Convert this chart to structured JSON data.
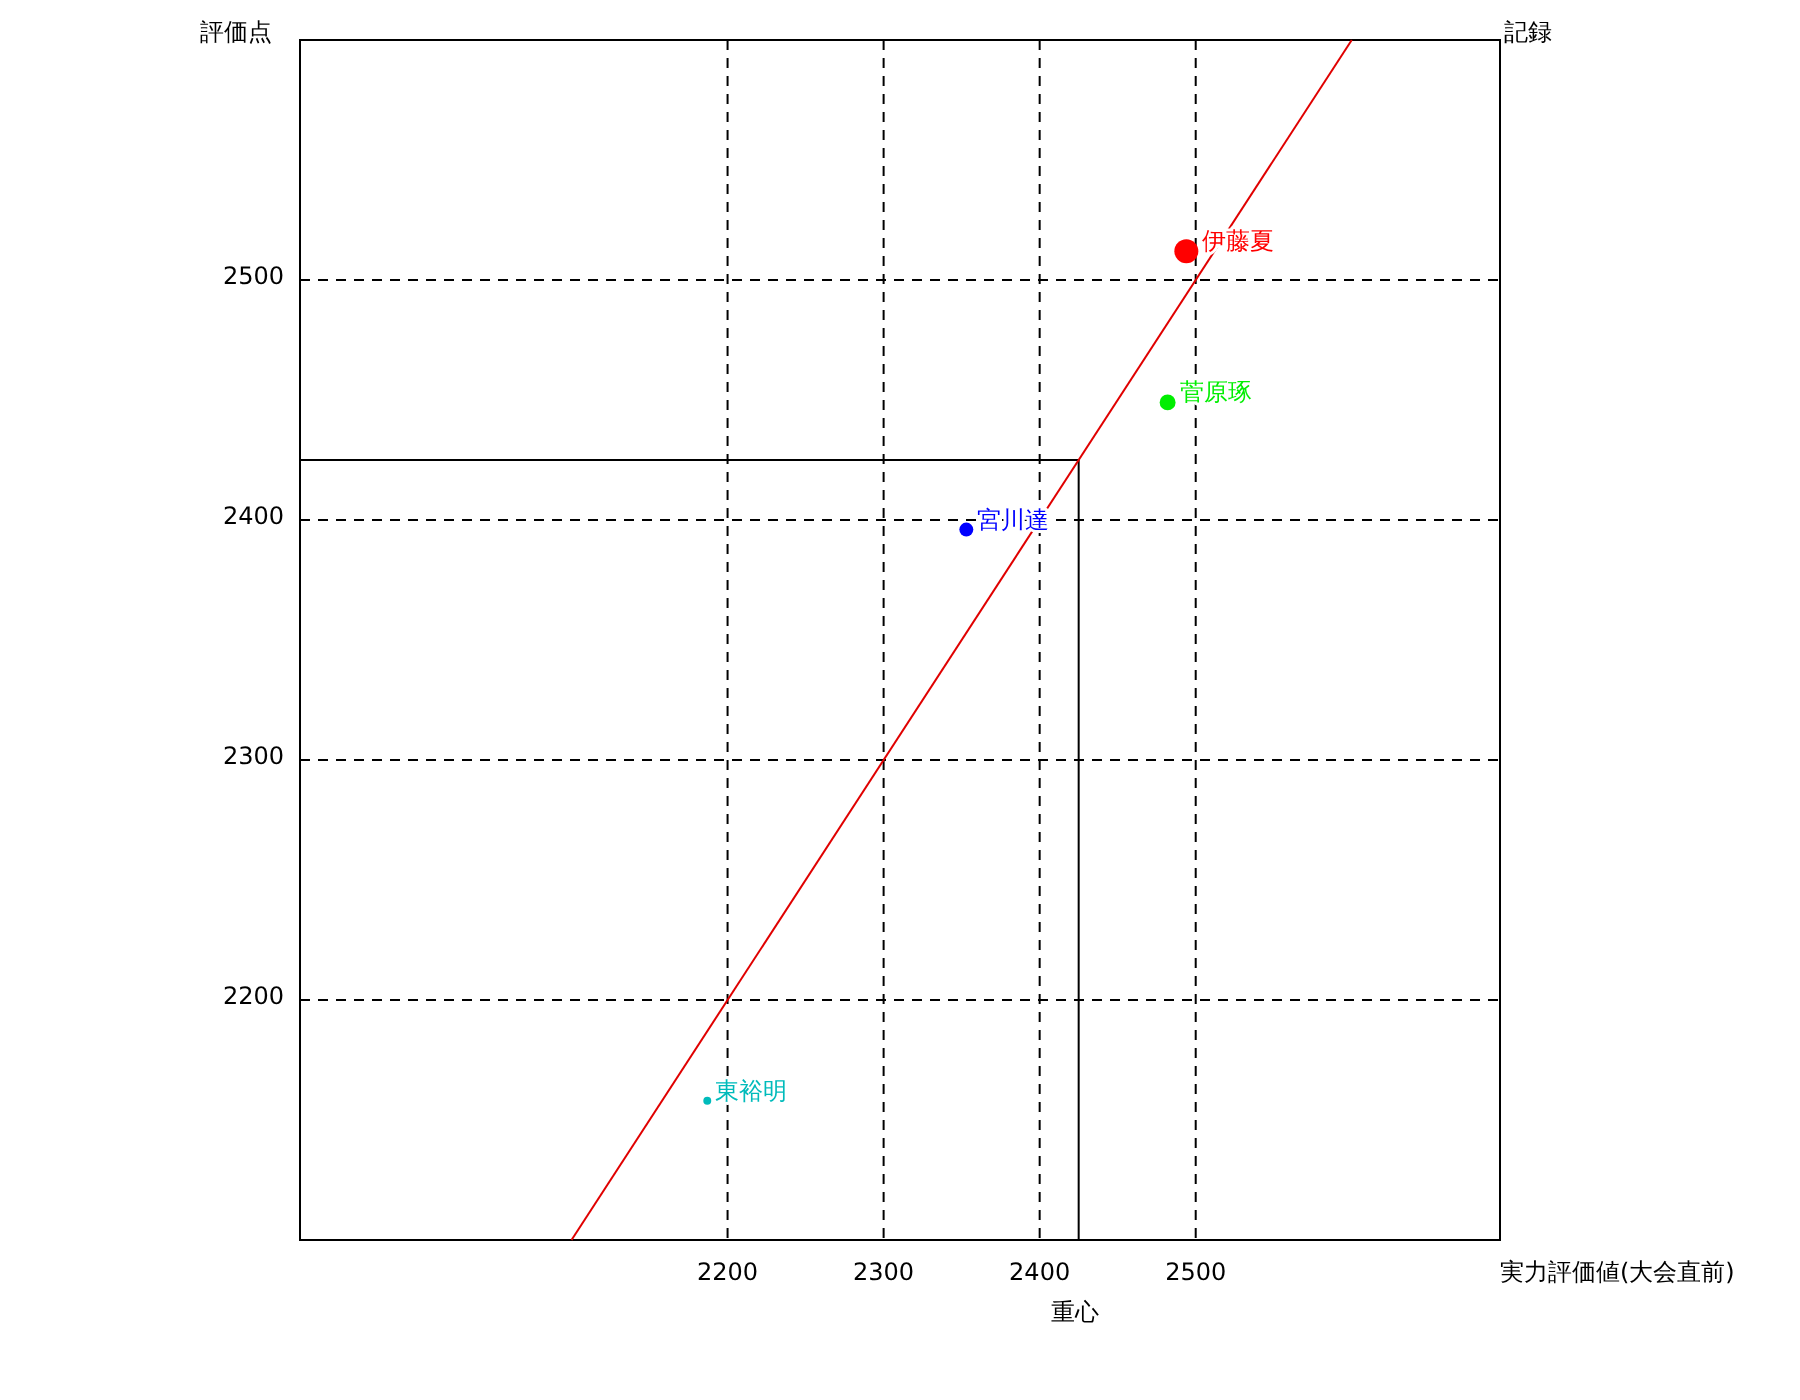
{
  "chart_data": {
    "type": "bubble",
    "xlabel": "実力評価値(大会直前)",
    "ylabel": "評価点",
    "y2label": "記録",
    "xlim": [
      1926,
      2695
    ],
    "ylim": [
      2100,
      2600
    ],
    "xticks": [
      2200,
      2300,
      2400,
      2500
    ],
    "yticks": [
      2200,
      2300,
      2400,
      2500
    ],
    "grid": true,
    "series": [
      {
        "type": "line",
        "color": "#e00000",
        "x": [
          2100,
          2600
        ],
        "values": [
          2100,
          2600
        ]
      },
      {
        "name": "伊藤夏",
        "color": "#ff0000",
        "x": [
          2494
        ],
        "values": [
          2512
        ],
        "sizes": [
          1
        ]
      },
      {
        "name": "菅原琢",
        "color": "#00ee00",
        "x": [
          2482
        ],
        "values": [
          2449
        ],
        "sizes": [
          0.44
        ]
      },
      {
        "name": "宮川達",
        "color": "#0000ff",
        "x": [
          2353
        ],
        "values": [
          2396
        ],
        "sizes": [
          0.34
        ]
      },
      {
        "name": "東裕明",
        "color": "#00bbbb",
        "x": [
          2187
        ],
        "values": [
          2158
        ],
        "sizes": [
          0.11
        ]
      }
    ],
    "ref_lines": [
      {
        "axis": "x",
        "value": 2425,
        "label": "重心",
        "color": "#000000"
      },
      {
        "axis": "y",
        "value": 2425,
        "color": "#000000"
      }
    ]
  }
}
